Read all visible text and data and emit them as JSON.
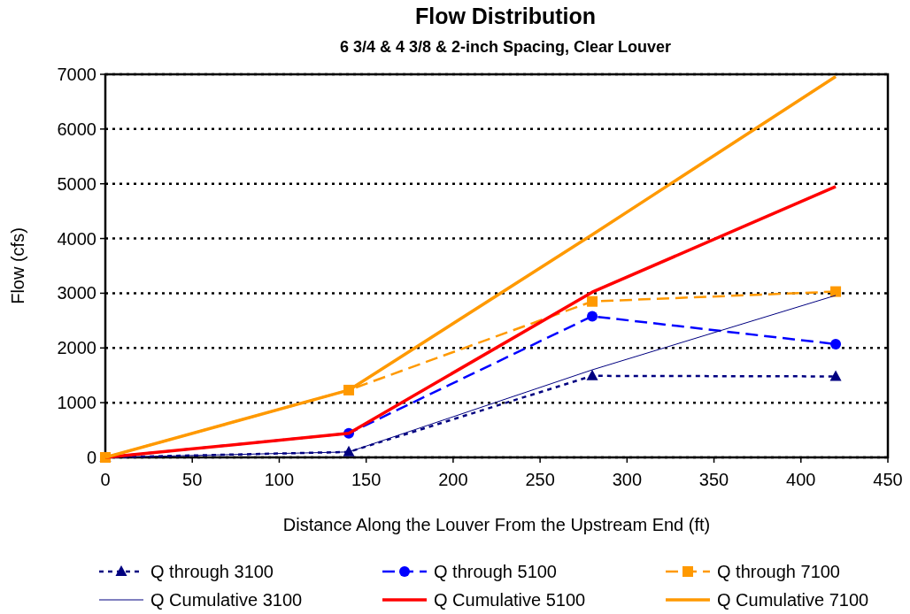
{
  "chart_data": {
    "type": "line",
    "title": "Flow Distribution",
    "subtitle": "6 3/4 & 4 3/8 & 2-inch Spacing, Clear Louver",
    "xlabel": "Distance Along the Louver From the Upstream End (ft)",
    "ylabel": "Flow (cfs)",
    "x": [
      0,
      140,
      280,
      420
    ],
    "xlim": [
      0,
      450
    ],
    "xticks": [
      0,
      50,
      100,
      150,
      200,
      250,
      300,
      350,
      400,
      450
    ],
    "ylim": [
      0,
      7000
    ],
    "yticks": [
      0,
      1000,
      2000,
      3000,
      4000,
      5000,
      6000,
      7000
    ],
    "grid": "y",
    "legend": "bottom",
    "series": [
      {
        "name": "Q through 3100",
        "color": "#000080",
        "values": [
          0,
          100,
          1490,
          1480
        ],
        "marker": "triangle",
        "line_style": "dotted"
      },
      {
        "name": "Q through 5100",
        "color": "#0000ff",
        "values": [
          0,
          440,
          2580,
          2070
        ],
        "marker": "circle",
        "line_style": "dashed"
      },
      {
        "name": "Q through 7100",
        "color": "#ff9900",
        "values": [
          0,
          1230,
          2850,
          3030
        ],
        "marker": "square",
        "line_style": "dashed"
      },
      {
        "name": "Q Cumulative 3100",
        "color": "#000080",
        "values": [
          0,
          100,
          1600,
          2960
        ],
        "marker": "none",
        "line_style": "solid"
      },
      {
        "name": "Q Cumulative 5100",
        "color": "#ff0000",
        "values": [
          0,
          440,
          3020,
          4950
        ],
        "marker": "none",
        "line_style": "solid"
      },
      {
        "name": "Q Cumulative 7100",
        "color": "#ff9900",
        "values": [
          0,
          1230,
          4070,
          6960
        ],
        "marker": "none",
        "line_style": "solid"
      }
    ]
  }
}
